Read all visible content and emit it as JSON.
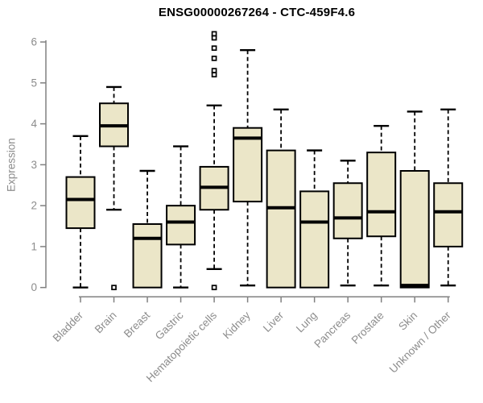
{
  "chart_data": {
    "type": "boxplot",
    "title": "ENSG00000267264 - CTC-459F4.6",
    "ylabel": "Expression",
    "xlabel": "",
    "ylim": [
      0,
      6
    ],
    "yticks": [
      0,
      1,
      2,
      3,
      4,
      5,
      6
    ],
    "grid": false,
    "legend": false,
    "categories": [
      "Bladder",
      "Brain",
      "Breast",
      "Gastric",
      "Hematopoietic cells",
      "Kidney",
      "Liver",
      "Lung",
      "Pancreas",
      "Prostate",
      "Skin",
      "Unknown / Other"
    ],
    "series": [
      {
        "name": "Bladder",
        "whisker_low": 0,
        "q1": 1.45,
        "median": 2.15,
        "q3": 2.7,
        "whisker_high": 3.7,
        "outliers": []
      },
      {
        "name": "Brain",
        "whisker_low": 1.9,
        "q1": 3.45,
        "median": 3.95,
        "q3": 4.5,
        "whisker_high": 4.9,
        "outliers": [
          0
        ]
      },
      {
        "name": "Breast",
        "whisker_low": 0,
        "q1": 0,
        "median": 1.2,
        "q3": 1.55,
        "whisker_high": 2.85,
        "outliers": []
      },
      {
        "name": "Gastric",
        "whisker_low": 0,
        "q1": 1.05,
        "median": 1.6,
        "q3": 2.0,
        "whisker_high": 3.45,
        "outliers": []
      },
      {
        "name": "Hematopoietic cells",
        "whisker_low": 0.45,
        "q1": 1.9,
        "median": 2.45,
        "q3": 2.95,
        "whisker_high": 4.45,
        "outliers": [
          6.2,
          6.1,
          5.85,
          5.6,
          5.3,
          5.2,
          0
        ]
      },
      {
        "name": "Kidney",
        "whisker_low": 0.05,
        "q1": 2.1,
        "median": 3.65,
        "q3": 3.9,
        "whisker_high": 5.8,
        "outliers": []
      },
      {
        "name": "Liver",
        "whisker_low": 0,
        "q1": 0,
        "median": 1.95,
        "q3": 3.35,
        "whisker_high": 4.35,
        "outliers": []
      },
      {
        "name": "Lung",
        "whisker_low": 0,
        "q1": 0,
        "median": 1.6,
        "q3": 2.35,
        "whisker_high": 3.35,
        "outliers": []
      },
      {
        "name": "Pancreas",
        "whisker_low": 0.05,
        "q1": 1.2,
        "median": 1.7,
        "q3": 2.55,
        "whisker_high": 3.1,
        "outliers": []
      },
      {
        "name": "Prostate",
        "whisker_low": 0.05,
        "q1": 1.25,
        "median": 1.85,
        "q3": 3.3,
        "whisker_high": 3.95,
        "outliers": []
      },
      {
        "name": "Skin",
        "whisker_low": 0,
        "q1": 0,
        "median": 0.05,
        "q3": 2.85,
        "whisker_high": 4.3,
        "outliers": []
      },
      {
        "name": "Unknown / Other",
        "whisker_low": 0.05,
        "q1": 1.0,
        "median": 1.85,
        "q3": 2.55,
        "whisker_high": 4.35,
        "outliers": []
      }
    ]
  },
  "colors": {
    "background": "#FFFFFF",
    "box_fill": "#EBE6C8",
    "box_border": "#000000",
    "median": "#000000",
    "whisker": "#000000",
    "outlier": "#000000",
    "axis_line": "#808080",
    "tick_label": "#8C8C8C",
    "title": "#000000"
  }
}
